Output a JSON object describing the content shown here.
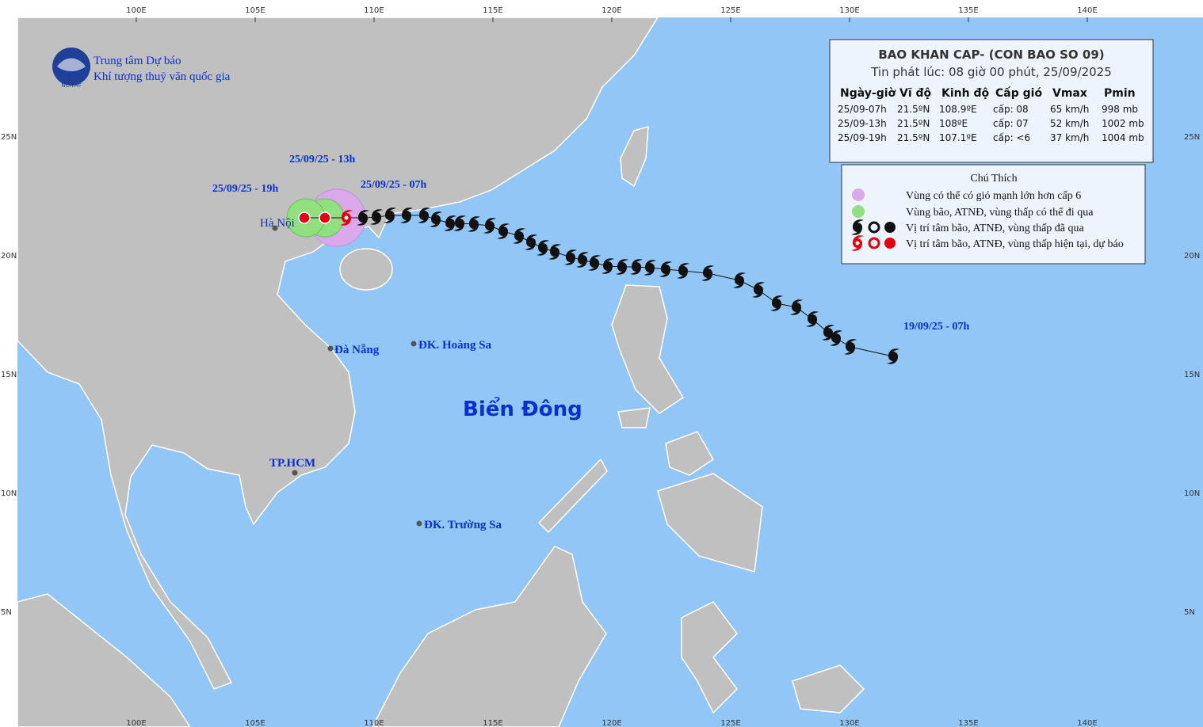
{
  "header": {
    "agency_line1": "Trung tâm Dự báo",
    "agency_line2": "Khí tượng thuỷ văn quốc gia",
    "logo": "NCHMF"
  },
  "bulletin": {
    "title": "BAO KHAN CAP- (CON BAO SO 09)",
    "issued": "Tin phát lúc: 08 giờ 00 phút, 25/09/2025",
    "columns": [
      "Ngày-giờ",
      "Vĩ độ",
      "Kinh độ",
      "Cấp gió",
      "Vmax",
      "Pmin"
    ],
    "rows": [
      [
        "25/09-07h",
        "21.5ºN",
        "108.9ºE",
        "cấp: 08",
        "65 km/h",
        "998 mb"
      ],
      [
        "25/09-13h",
        "21.5ºN",
        "108ºE",
        "cấp: 07",
        "52 km/h",
        "1002 mb"
      ],
      [
        "25/09-19h",
        "21.5ºN",
        "107.1ºE",
        "cấp: <6",
        "37 km/h",
        "1004 mb"
      ]
    ]
  },
  "legend": {
    "title": "Chú Thích",
    "items": [
      "Vùng có thể có gió mạnh lớn hơn cấp 6",
      "Vùng bão, ATNĐ, vùng thấp có thể đi qua",
      "Vị trí tâm bão, ATNĐ, vùng thấp đã qua",
      "Vị trí tâm bão, ATNĐ, vùng thấp hiện tại, dự báo"
    ]
  },
  "places": [
    "Hà Nội",
    "Đà Nẵng",
    "ĐK. Hoàng Sa",
    "TP.HCM",
    "ĐK. Trường Sa"
  ],
  "track_labels": [
    "25/09/25 - 13h",
    "25/09/25 - 07h",
    "25/09/25 - 19h",
    "19/09/25 - 07h"
  ],
  "sea_label": "Biển Đông",
  "grid": {
    "lon_labels": [
      "100E",
      "105E",
      "110E",
      "115E",
      "120E",
      "125E",
      "130E",
      "135E",
      "140E"
    ],
    "lat_labels": [
      "25N",
      "20N",
      "15N",
      "10N",
      "5N"
    ]
  }
}
